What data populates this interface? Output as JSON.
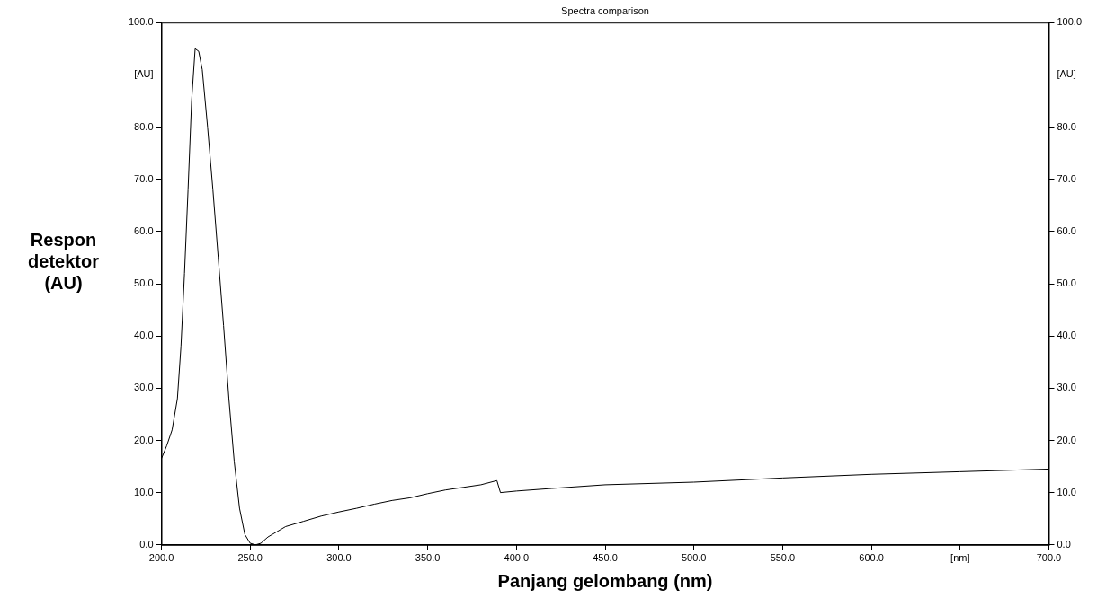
{
  "chart_data": {
    "type": "line",
    "title": "Spectra comparison",
    "x_label": "Panjang gelombang (nm)",
    "y_label": "Respon detektor (AU)",
    "x": [
      200,
      203,
      206,
      209,
      211,
      213,
      215,
      217,
      219,
      221,
      223,
      226,
      229,
      232,
      235,
      238,
      241,
      244,
      247,
      250,
      253,
      256,
      260,
      265,
      270,
      280,
      290,
      300,
      310,
      320,
      330,
      340,
      350,
      360,
      370,
      380,
      389,
      391,
      400,
      420,
      450,
      500,
      550,
      600,
      650,
      700
    ],
    "values": [
      16.5,
      19,
      22,
      28,
      38,
      52,
      68,
      85,
      95,
      94.5,
      91,
      80,
      68,
      55,
      42,
      28,
      16,
      7,
      2,
      0.3,
      0,
      0.3,
      1.5,
      2.5,
      3.5,
      4.5,
      5.5,
      6.3,
      7,
      7.8,
      8.5,
      9,
      9.8,
      10.5,
      11,
      11.5,
      12.3,
      10,
      10.3,
      10.8,
      11.5,
      12,
      12.8,
      13.5,
      14,
      14.5
    ],
    "color": "#000000",
    "xlim": [
      200,
      700
    ],
    "xticks": [
      {
        "value": 200,
        "label": "200.0"
      },
      {
        "value": 250,
        "label": "250.0"
      },
      {
        "value": 300,
        "label": "300.0"
      },
      {
        "value": 350,
        "label": "350.0"
      },
      {
        "value": 400,
        "label": "400.0"
      },
      {
        "value": 450,
        "label": "450.0"
      },
      {
        "value": 500,
        "label": "500.0"
      },
      {
        "value": 550,
        "label": "550.0"
      },
      {
        "value": 600,
        "label": "600.0"
      },
      {
        "value": 650,
        "label": "[nm]"
      },
      {
        "value": 700,
        "label": "700.0"
      }
    ],
    "ylim": [
      0,
      100
    ],
    "yticks": [
      {
        "value": 0,
        "label": "0.0"
      },
      {
        "value": 10,
        "label": "10.0"
      },
      {
        "value": 20,
        "label": "20.0"
      },
      {
        "value": 30,
        "label": "30.0"
      },
      {
        "value": 40,
        "label": "40.0"
      },
      {
        "value": 50,
        "label": "50.0"
      },
      {
        "value": 60,
        "label": "60.0"
      },
      {
        "value": 70,
        "label": "70.0"
      },
      {
        "value": 80,
        "label": "80.0"
      },
      {
        "value": 90,
        "label": "[AU]"
      },
      {
        "value": 100,
        "label": "100.0"
      }
    ],
    "y2lim": [
      0,
      100
    ],
    "y2ticks": [
      {
        "value": 0,
        "label": "0.0"
      },
      {
        "value": 10,
        "label": "10.0"
      },
      {
        "value": 20,
        "label": "20.0"
      },
      {
        "value": 30,
        "label": "30.0"
      },
      {
        "value": 40,
        "label": "40.0"
      },
      {
        "value": 50,
        "label": "50.0"
      },
      {
        "value": 60,
        "label": "60.0"
      },
      {
        "value": 70,
        "label": "70.0"
      },
      {
        "value": 80,
        "label": "80.0"
      },
      {
        "value": 90,
        "label": "[AU]"
      },
      {
        "value": 100,
        "label": "100.0"
      }
    ],
    "grid": false
  }
}
